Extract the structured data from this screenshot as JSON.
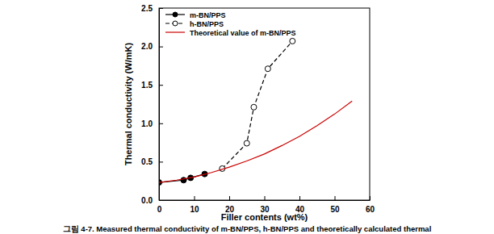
{
  "chart_data": {
    "type": "line",
    "x_label": "Filler contents (wt%)",
    "y_label": "Thermal conductivity (W/mK)",
    "caption": "그림 4-7. Measured thermal conductivity of m-BN/PPS, h-BN/PPS and theoretically calculated thermal",
    "xlim": [
      0,
      60
    ],
    "xticks": [
      0,
      10,
      20,
      30,
      40,
      50,
      60
    ],
    "ylim": [
      0,
      2.5
    ],
    "yticks": [
      {
        "value": 0,
        "label": "0.0"
      },
      {
        "value": 0.5,
        "label": "0.5"
      },
      {
        "value": 1,
        "label": "1.0"
      },
      {
        "value": 1.5,
        "label": "1.5"
      },
      {
        "value": 2,
        "label": "2.0"
      },
      {
        "value": 2.5,
        "label": "2.5"
      }
    ],
    "grid": false,
    "legend": "upper left",
    "series": [
      {
        "name": "m-BN/PPS",
        "color": "#000000",
        "marker": "circle-filled",
        "line_style": "solid",
        "x": [
          0,
          7,
          9,
          13
        ],
        "values": [
          0.23,
          0.26,
          0.29,
          0.34
        ]
      },
      {
        "name": "h-BN/PPS",
        "color": "#000000",
        "marker": "circle-open",
        "line_style": "dashed",
        "x": [
          18,
          25,
          27,
          31,
          38
        ],
        "values": [
          0.41,
          0.74,
          1.21,
          1.71,
          2.07
        ]
      },
      {
        "name": "Theoretical value of m-BN/PPS",
        "color": "#cc0000",
        "marker": "none",
        "line_style": "solid",
        "x": [
          0,
          5,
          10,
          15,
          20,
          25,
          30,
          35,
          40,
          45,
          50,
          55
        ],
        "values": [
          0.23,
          0.26,
          0.3,
          0.36,
          0.43,
          0.51,
          0.6,
          0.71,
          0.83,
          0.97,
          1.12,
          1.29
        ]
      }
    ]
  }
}
